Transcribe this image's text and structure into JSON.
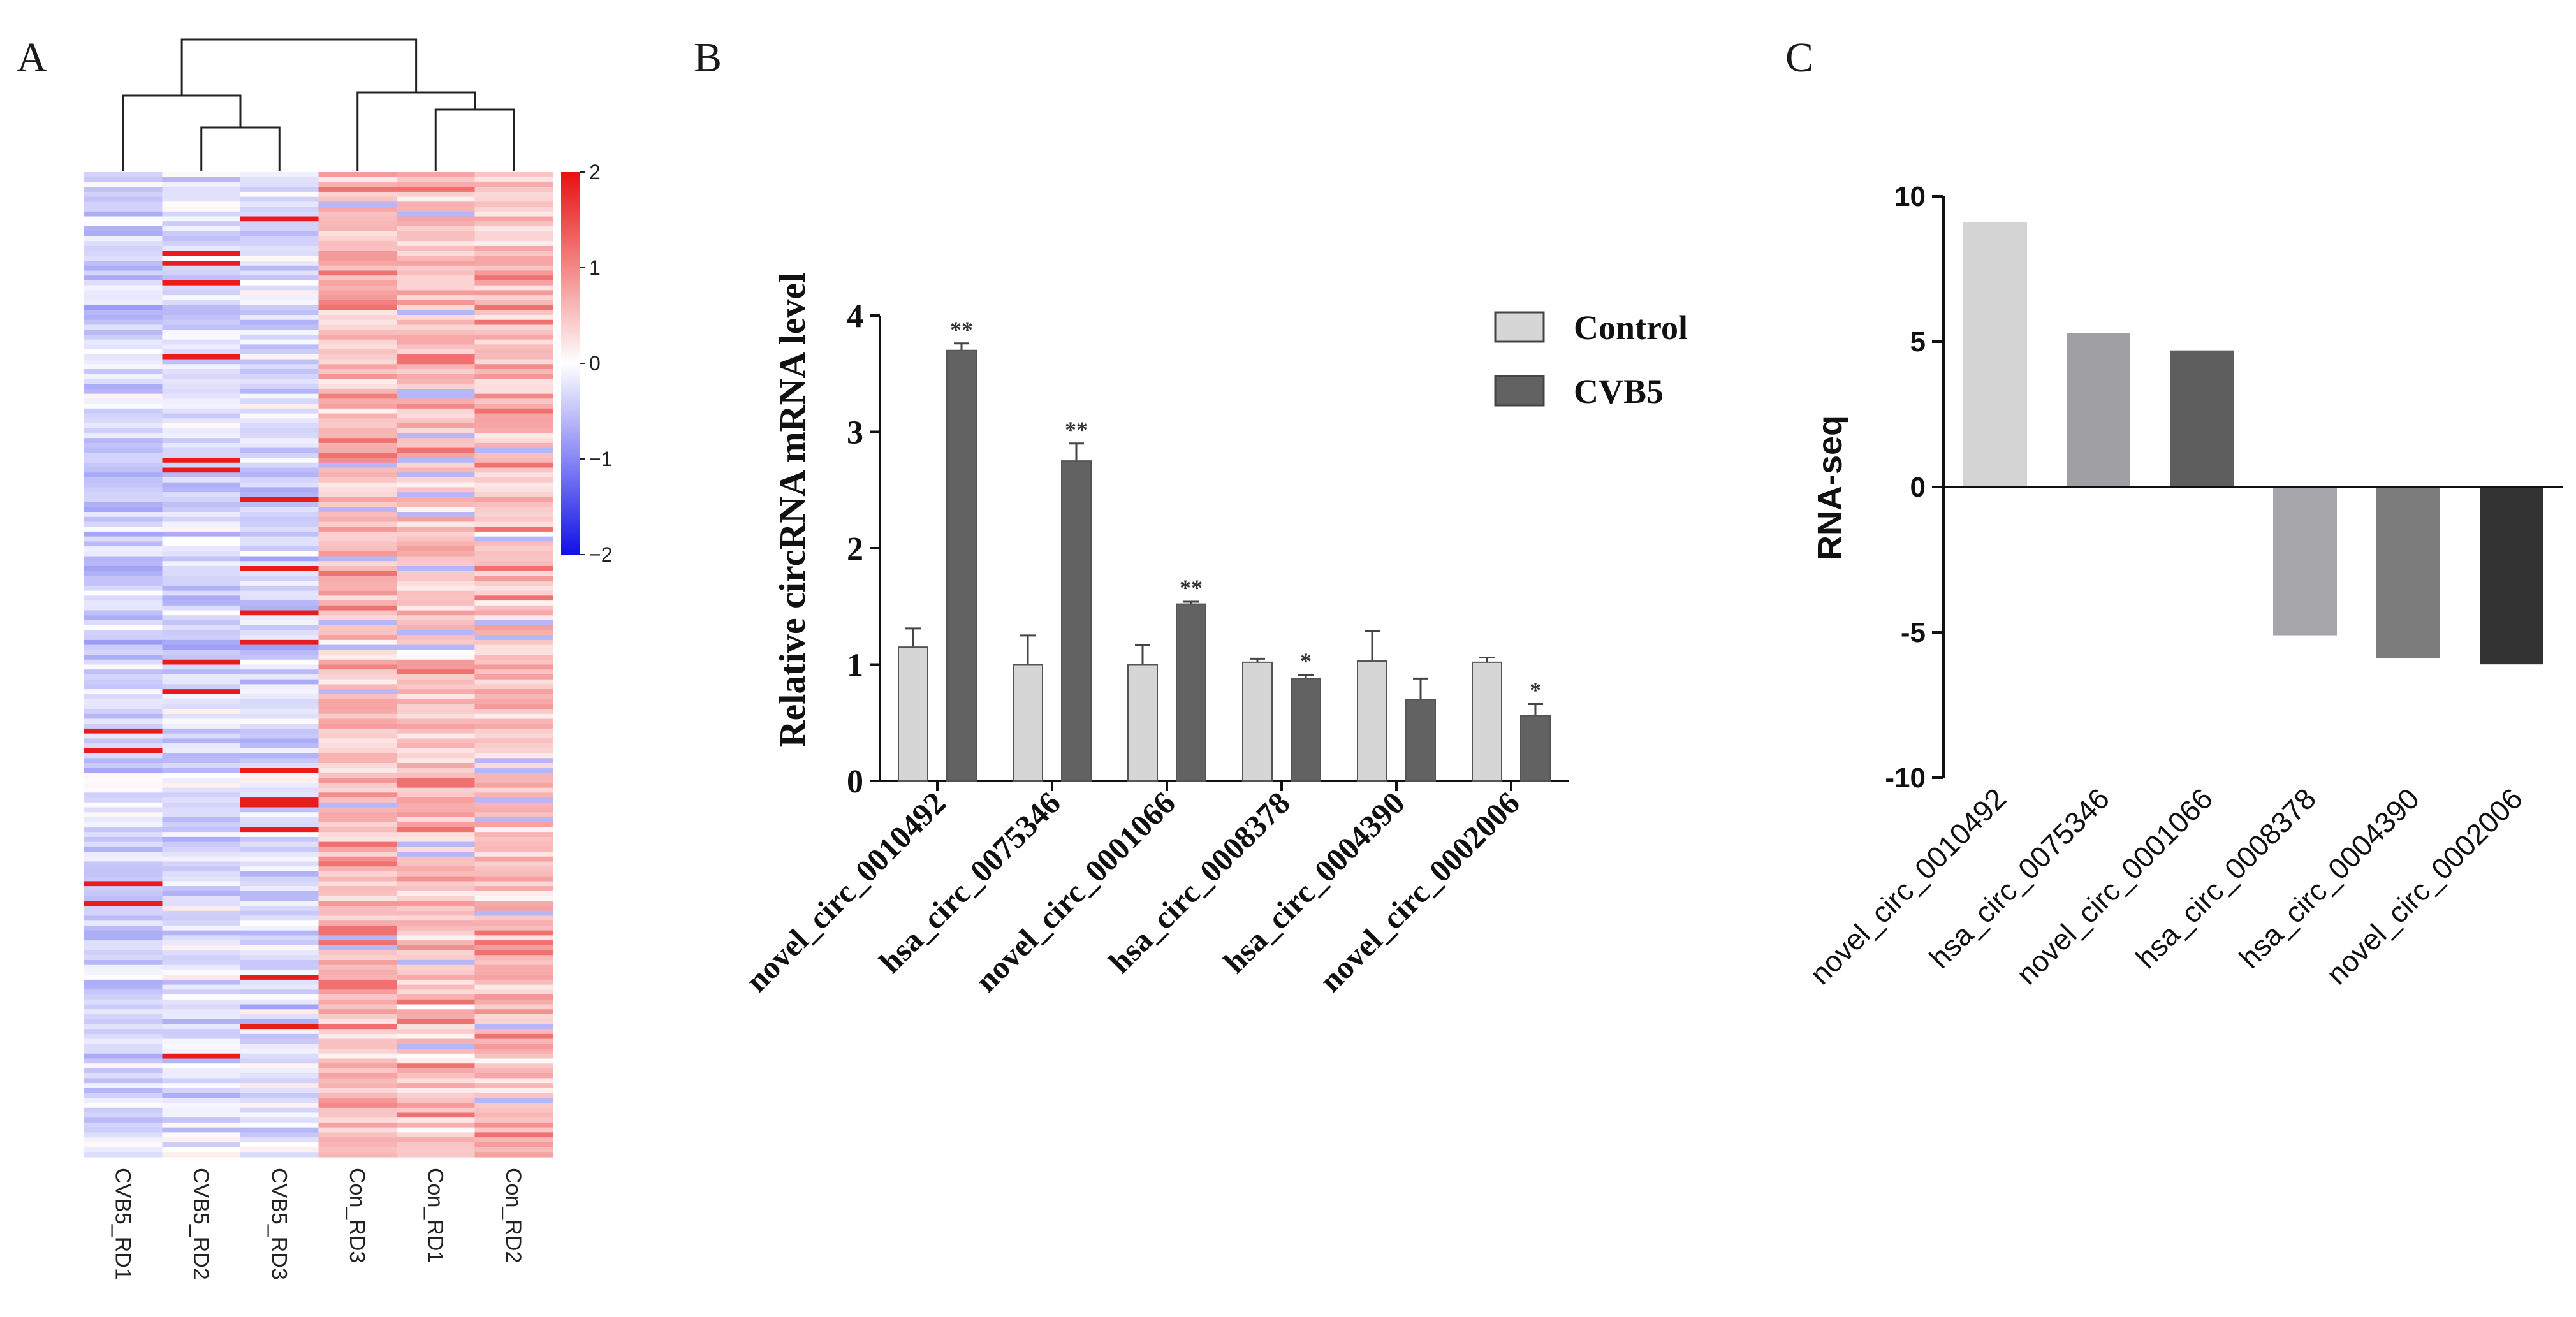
{
  "panels": {
    "a": {
      "letter": "A"
    },
    "b": {
      "letter": "B"
    },
    "c": {
      "letter": "C"
    }
  },
  "chart_data": [
    {
      "type": "heatmap",
      "columns": [
        "CVB5_RD1",
        "CVB5_RD2",
        "CVB5_RD3",
        "Con_RD3",
        "Con_RD1",
        "Con_RD2"
      ],
      "colorbar": {
        "ticks": [
          "2",
          "1",
          "0",
          "−1",
          "−2"
        ],
        "min": -2,
        "max": 2
      },
      "colors": {
        "low": "#1010e8",
        "mid": "#ffffff",
        "high": "#e81010"
      },
      "n_rows": 200,
      "group_means": [
        -0.35,
        -0.3,
        -0.3,
        0.55,
        0.5,
        0.5
      ],
      "dendrogram": "((CVB5_RD1,(CVB5_RD2,CVB5_RD3)),(Con_RD3,(Con_RD1,Con_RD2)))"
    },
    {
      "type": "bar",
      "categories": [
        "novel_circ_0010492",
        "hsa_circ_0075346",
        "novel_circ_0001066",
        "hsa_circ_0008378",
        "hsa_circ_0004390",
        "novel_circ_0002006"
      ],
      "series": [
        {
          "name": "Control",
          "values": [
            1.15,
            1.0,
            1.0,
            1.02,
            1.03,
            1.02
          ],
          "errors": [
            0.16,
            0.25,
            0.17,
            0.03,
            0.26,
            0.04
          ],
          "color": "#d6d6d6"
        },
        {
          "name": "CVB5",
          "values": [
            3.7,
            2.75,
            1.52,
            0.88,
            0.7,
            0.56
          ],
          "errors": [
            0.06,
            0.15,
            0.02,
            0.03,
            0.18,
            0.1
          ],
          "color": "#626262"
        }
      ],
      "significance": [
        "**",
        "**",
        "**",
        "*",
        "",
        "*"
      ],
      "ylabel": "Relative circRNA mRNA level",
      "ylim": [
        0,
        4
      ],
      "yticks": [
        "0",
        "1",
        "2",
        "3",
        "4"
      ],
      "legend_position": "top-right"
    },
    {
      "type": "bar",
      "categories": [
        "novel_circ_0010492",
        "hsa_circ_0075346",
        "novel_circ_0001066",
        "hsa_circ_0008378",
        "hsa_circ_0004390",
        "novel_circ_0002006"
      ],
      "values": [
        9.1,
        5.3,
        4.7,
        -5.1,
        -5.9,
        -6.1
      ],
      "colors": [
        "#d4d4d4",
        "#9f9fa4",
        "#5e5e5e",
        "#a6a6aa",
        "#7c7c7c",
        "#333333"
      ],
      "ylabel": "RNA-seq",
      "ylim": [
        -10,
        10
      ],
      "yticks": [
        "10",
        "5",
        "0",
        "-5",
        "-10"
      ]
    }
  ]
}
